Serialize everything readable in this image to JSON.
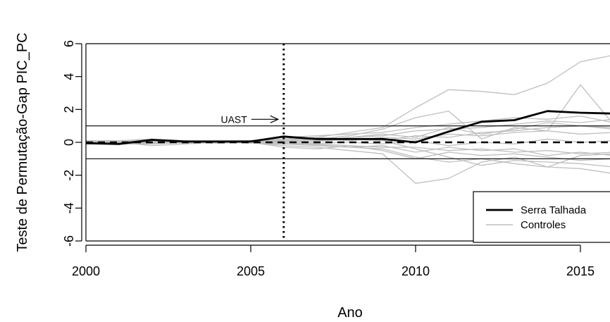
{
  "chart_data": {
    "type": "line",
    "title": "",
    "xlabel": "Ano",
    "ylabel": "Teste de Permutação-Gap PIC_PC",
    "xlim": [
      2000,
      2016
    ],
    "ylim": [
      -6,
      6
    ],
    "xticks": [
      2000,
      2005,
      2010,
      2015
    ],
    "yticks": [
      -6,
      -4,
      -2,
      0,
      2,
      4,
      6
    ],
    "x": [
      2000,
      2001,
      2002,
      2003,
      2004,
      2005,
      2006,
      2007,
      2008,
      2009,
      2010,
      2011,
      2012,
      2013,
      2014,
      2015,
      2016
    ],
    "hlines": [
      1,
      -1
    ],
    "zero_line": 0,
    "vline": {
      "x": 2006,
      "style": "dotted"
    },
    "annotation": {
      "text": "UAST",
      "x": 2006,
      "y": 1.4
    },
    "legend": {
      "position": "bottom-right"
    },
    "series": [
      {
        "name": "Serra Talhada",
        "color": "#000000",
        "role": "treated",
        "values": [
          -0.05,
          -0.1,
          0.15,
          0.05,
          0.05,
          0.05,
          0.35,
          0.2,
          0.2,
          0.2,
          0.0,
          0.65,
          1.25,
          1.35,
          1.9,
          1.8,
          1.75
        ]
      },
      {
        "name": "Controles",
        "color": "#bfbfbf",
        "role": "controls",
        "lines": [
          [
            0.1,
            0.05,
            0.1,
            0.0,
            0.0,
            0.1,
            0.2,
            0.3,
            0.6,
            0.9,
            2.1,
            3.2,
            3.1,
            2.9,
            3.6,
            4.9,
            5.3
          ],
          [
            -0.1,
            0.0,
            0.2,
            0.05,
            0.0,
            0.0,
            0.1,
            0.2,
            0.4,
            0.8,
            1.5,
            1.9,
            0.2,
            0.9,
            0.7,
            3.5,
            1.1
          ],
          [
            0.0,
            -0.1,
            0.0,
            -0.05,
            0.05,
            0.0,
            -0.2,
            -0.3,
            -0.5,
            -0.7,
            -2.5,
            -2.2,
            -1.2,
            -0.9,
            -1.5,
            -0.8,
            -0.7
          ],
          [
            0.05,
            0.0,
            -0.1,
            0.0,
            0.05,
            0.1,
            0.3,
            0.4,
            0.5,
            0.6,
            0.9,
            1.1,
            1.3,
            1.5,
            1.4,
            1.6,
            1.2
          ],
          [
            -0.05,
            0.05,
            0.0,
            0.0,
            -0.05,
            0.0,
            -0.1,
            -0.2,
            -0.3,
            -0.4,
            -0.9,
            -1.2,
            -1.0,
            -1.3,
            -1.5,
            -1.6,
            -1.9
          ],
          [
            0.1,
            0.1,
            0.2,
            0.1,
            0.0,
            0.0,
            0.2,
            0.1,
            0.3,
            0.4,
            0.7,
            0.8,
            0.9,
            1.1,
            1.3,
            1.2,
            1.4
          ],
          [
            0.0,
            0.0,
            -0.2,
            -0.1,
            0.0,
            0.0,
            -0.3,
            -0.4,
            -0.2,
            -0.5,
            -1.0,
            -0.6,
            -0.8,
            -0.7,
            -0.9,
            -1.1,
            -1.0
          ],
          [
            -0.1,
            -0.05,
            0.05,
            0.0,
            0.0,
            0.05,
            0.1,
            0.05,
            0.2,
            0.1,
            0.4,
            0.3,
            0.6,
            0.7,
            0.9,
            1.0,
            0.8
          ],
          [
            0.05,
            0.0,
            0.1,
            0.05,
            0.0,
            -0.05,
            -0.1,
            -0.1,
            -0.2,
            -0.3,
            -0.3,
            -0.5,
            -0.4,
            -0.6,
            -0.5,
            -0.7,
            -0.6
          ],
          [
            0.0,
            0.05,
            -0.05,
            0.0,
            0.05,
            0.0,
            0.15,
            0.25,
            0.1,
            0.3,
            0.2,
            0.5,
            0.4,
            0.6,
            0.7,
            0.5,
            0.6
          ],
          [
            0.1,
            0.0,
            0.0,
            -0.05,
            0.0,
            0.0,
            0.05,
            -0.05,
            0.0,
            -0.1,
            0.1,
            -0.2,
            0.0,
            -0.1,
            0.2,
            0.0,
            0.1
          ],
          [
            -0.05,
            -0.1,
            -0.1,
            0.0,
            0.0,
            0.05,
            0.2,
            0.3,
            0.2,
            0.1,
            -0.4,
            -0.9,
            -1.4,
            -1.1,
            -1.2,
            -1.3,
            -1.5
          ],
          [
            0.0,
            0.0,
            0.05,
            0.05,
            0.0,
            0.0,
            -0.05,
            0.1,
            0.3,
            0.5,
            0.3,
            0.9,
            0.5,
            0.8,
            1.2,
            1.0,
            0.9
          ],
          [
            0.05,
            0.05,
            0.0,
            0.0,
            -0.05,
            0.0,
            0.0,
            -0.15,
            -0.3,
            -0.2,
            -0.6,
            -0.3,
            -0.5,
            -0.4,
            -0.8,
            -0.6,
            -0.8
          ]
        ]
      }
    ]
  }
}
